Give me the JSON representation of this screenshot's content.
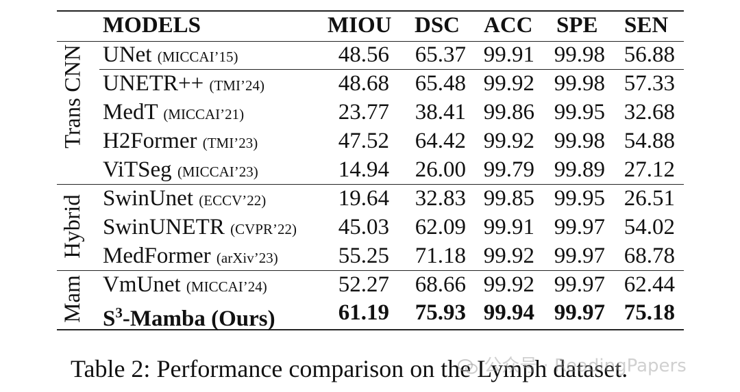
{
  "table": {
    "headers": [
      "MODELS",
      "MIOU",
      "DSC",
      "ACC",
      "SPE",
      "SEN"
    ],
    "groups": [
      {
        "label": "Trans CNN"
      },
      {
        "label": "Hybrid"
      },
      {
        "label": "Mam"
      }
    ],
    "rows": [
      {
        "model": "UNet",
        "venue": "(MICCAI’15)",
        "values": [
          "48.56",
          "65.37",
          "99.91",
          "99.98",
          "56.88"
        ]
      },
      {
        "model": "UNETR++",
        "venue": "(TMI’24)",
        "values": [
          "48.68",
          "65.48",
          "99.92",
          "99.98",
          "57.33"
        ]
      },
      {
        "model": "MedT",
        "venue": "(MICCAI’21)",
        "values": [
          "23.77",
          "38.41",
          "99.86",
          "99.95",
          "32.68"
        ]
      },
      {
        "model": "H2Former",
        "venue": "(TMI’23)",
        "values": [
          "47.52",
          "64.42",
          "99.92",
          "99.98",
          "54.88"
        ]
      },
      {
        "model": "ViTSeg",
        "venue": "(MICCAI’23)",
        "values": [
          "14.94",
          "26.00",
          "99.79",
          "99.89",
          "27.12"
        ]
      },
      {
        "model": "SwinUnet",
        "venue": "(ECCV’22)",
        "values": [
          "19.64",
          "32.83",
          "99.85",
          "99.95",
          "26.51"
        ]
      },
      {
        "model": "SwinUNETR",
        "venue": "(CVPR’22)",
        "values": [
          "45.03",
          "62.09",
          "99.91",
          "99.97",
          "54.02"
        ]
      },
      {
        "model": "MedFormer",
        "venue": "(arXiv’23)",
        "values": [
          "55.25",
          "71.18",
          "99.92",
          "99.97",
          "68.78"
        ]
      },
      {
        "model": "VmUnet",
        "venue": "(MICCAI’24)",
        "values": [
          "52.27",
          "68.66",
          "99.92",
          "99.97",
          "62.44"
        ]
      },
      {
        "model_prefix": "S",
        "model_sup": "3",
        "model_suffix": "-Mamba (Ours)",
        "values": [
          "61.19",
          "75.93",
          "99.94",
          "99.97",
          "75.18"
        ]
      }
    ]
  },
  "caption": "Table 2: Performance comparison on the Lymph dataset.",
  "watermark": "公众号 · ReadingPapers"
}
